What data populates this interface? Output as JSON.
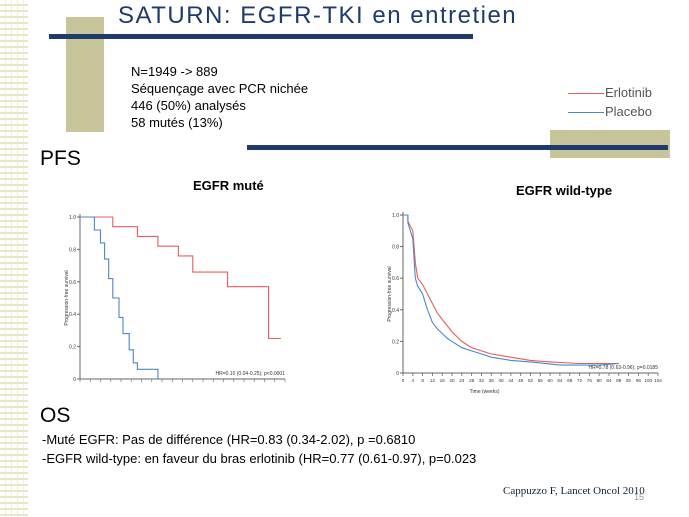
{
  "slide": {
    "title": "SATURN:  EGFR-TKI en entretien",
    "page_number": "15",
    "citation": "Cappuzzo F, Lancet Oncol 2010"
  },
  "intro": [
    "N=1949 -> 889",
    "Séquençage avec PCR nichée",
    "446 (50%) analysés",
    "58 mutés (13%)"
  ],
  "legend": [
    {
      "label": "Erlotinib",
      "color": "#e06060"
    },
    {
      "label": "Placebo",
      "color": "#4f86c6"
    }
  ],
  "pfs": {
    "heading": "PFS",
    "mutant_title": "EGFR muté",
    "wildtype_title": "EGFR wild-type"
  },
  "os": {
    "heading": "OS",
    "lines": [
      "-Muté EGFR: Pas de différence (HR=0.83 (0.34-2.02), p =0.6810",
      "-EGFR wild-type: en faveur du bras erlotinib (HR=0.77 (0.61-0.97), p=0.023"
    ]
  },
  "chart_data": [
    {
      "type": "line",
      "title": "EGFR muté",
      "ylabel": "Progression-free survival",
      "ylim": [
        0,
        1
      ],
      "yticks": [
        "0",
        "0.2",
        "0.4",
        "0.6",
        "0.8",
        "1.0"
      ],
      "annotation": "HR=0.10 (0.04-0.25); p<0.0001",
      "series": [
        {
          "name": "Erlotinib",
          "color": "#e06060",
          "points": [
            [
              0,
              1.0
            ],
            [
              0.16,
              1.0
            ],
            [
              0.16,
              0.94
            ],
            [
              0.28,
              0.94
            ],
            [
              0.28,
              0.88
            ],
            [
              0.38,
              0.88
            ],
            [
              0.38,
              0.82
            ],
            [
              0.48,
              0.82
            ],
            [
              0.48,
              0.76
            ],
            [
              0.55,
              0.76
            ],
            [
              0.55,
              0.66
            ],
            [
              0.72,
              0.66
            ],
            [
              0.72,
              0.57
            ],
            [
              0.92,
              0.57
            ],
            [
              0.92,
              0.25
            ],
            [
              0.98,
              0.25
            ]
          ]
        },
        {
          "name": "Placebo",
          "color": "#4f86c6",
          "points": [
            [
              0,
              1.0
            ],
            [
              0.07,
              1.0
            ],
            [
              0.07,
              0.92
            ],
            [
              0.1,
              0.92
            ],
            [
              0.1,
              0.84
            ],
            [
              0.12,
              0.84
            ],
            [
              0.12,
              0.74
            ],
            [
              0.14,
              0.74
            ],
            [
              0.14,
              0.62
            ],
            [
              0.16,
              0.62
            ],
            [
              0.16,
              0.5
            ],
            [
              0.19,
              0.5
            ],
            [
              0.19,
              0.38
            ],
            [
              0.21,
              0.38
            ],
            [
              0.21,
              0.28
            ],
            [
              0.24,
              0.28
            ],
            [
              0.24,
              0.18
            ],
            [
              0.26,
              0.18
            ],
            [
              0.26,
              0.1
            ],
            [
              0.28,
              0.1
            ],
            [
              0.28,
              0.06
            ],
            [
              0.38,
              0.06
            ],
            [
              0.38,
              0.0
            ]
          ]
        }
      ]
    },
    {
      "type": "line",
      "title": "EGFR wild-type",
      "xlabel": "Time (weeks)",
      "ylabel": "Progression-free survival",
      "ylim": [
        0,
        1
      ],
      "yticks": [
        "0",
        "0.2",
        "0.4",
        "0.6",
        "0.8",
        "1.0"
      ],
      "xticks": [
        "0",
        "4",
        "8",
        "12",
        "16",
        "20",
        "24",
        "28",
        "32",
        "36",
        "40",
        "44",
        "48",
        "52",
        "56",
        "60",
        "64",
        "68",
        "72",
        "76",
        "80",
        "84",
        "88",
        "92",
        "96",
        "100",
        "104"
      ],
      "annotation": "HR=0.78 (0.63-0.96); p=0.0185",
      "series": [
        {
          "name": "Erlotinib",
          "color": "#e06060",
          "points": [
            [
              0,
              1.0
            ],
            [
              2,
              1.0
            ],
            [
              2,
              0.96
            ],
            [
              4,
              0.9
            ],
            [
              5,
              0.7
            ],
            [
              6,
              0.6
            ],
            [
              8,
              0.56
            ],
            [
              10,
              0.5
            ],
            [
              12,
              0.44
            ],
            [
              14,
              0.38
            ],
            [
              16,
              0.34
            ],
            [
              18,
              0.3
            ],
            [
              20,
              0.26
            ],
            [
              24,
              0.2
            ],
            [
              28,
              0.16
            ],
            [
              32,
              0.14
            ],
            [
              36,
              0.12
            ],
            [
              40,
              0.11
            ],
            [
              44,
              0.1
            ],
            [
              52,
              0.08
            ],
            [
              60,
              0.07
            ],
            [
              72,
              0.06
            ],
            [
              84,
              0.06
            ],
            [
              88,
              0.06
            ]
          ]
        },
        {
          "name": "Placebo",
          "color": "#4f86c6",
          "points": [
            [
              0,
              1.0
            ],
            [
              2,
              1.0
            ],
            [
              2,
              0.95
            ],
            [
              4,
              0.85
            ],
            [
              5,
              0.6
            ],
            [
              6,
              0.55
            ],
            [
              8,
              0.5
            ],
            [
              10,
              0.4
            ],
            [
              12,
              0.32
            ],
            [
              14,
              0.28
            ],
            [
              16,
              0.25
            ],
            [
              18,
              0.22
            ],
            [
              20,
              0.2
            ],
            [
              24,
              0.16
            ],
            [
              28,
              0.14
            ],
            [
              32,
              0.12
            ],
            [
              36,
              0.1
            ],
            [
              44,
              0.08
            ],
            [
              52,
              0.07
            ],
            [
              64,
              0.05
            ],
            [
              80,
              0.05
            ],
            [
              88,
              0.06
            ]
          ]
        }
      ]
    }
  ]
}
